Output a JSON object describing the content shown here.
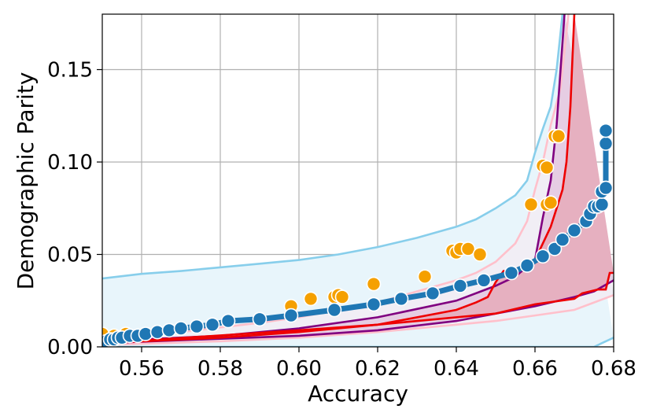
{
  "chart_data": {
    "type": "line",
    "xlabel": "Accuracy",
    "ylabel": "Demographic Parity",
    "xlim": [
      0.55,
      0.68
    ],
    "ylim": [
      0.0,
      0.18
    ],
    "xticks": [
      0.56,
      0.58,
      0.6,
      0.62,
      0.64,
      0.66,
      0.68
    ],
    "xtick_labels": [
      "0.56",
      "0.58",
      "0.60",
      "0.62",
      "0.64",
      "0.66",
      "0.68"
    ],
    "yticks": [
      0.0,
      0.05,
      0.1,
      0.15
    ],
    "ytick_labels": [
      "0.00",
      "0.05",
      "0.10",
      "0.15"
    ],
    "grid": true,
    "legend": "none",
    "colors": {
      "light_blue_line": "#87ceeb",
      "light_blue_fill": "#e8f5fb",
      "pink_line": "#ffc0cb",
      "pink_fill": "#f1eef5",
      "purple_line": "#800080",
      "purple_fill": "#e6cde3",
      "red_line": "#ee0000",
      "red_fill": "#e6b0c0",
      "orange_points": "#f5a000",
      "blue_series": "#1f77b4"
    },
    "bands": [
      {
        "color_key": "light_blue",
        "upper": [
          [
            0.55,
            0.037
          ],
          [
            0.56,
            0.0395
          ],
          [
            0.57,
            0.041
          ],
          [
            0.58,
            0.043
          ],
          [
            0.59,
            0.045
          ],
          [
            0.6,
            0.047
          ],
          [
            0.61,
            0.05
          ],
          [
            0.62,
            0.054
          ],
          [
            0.63,
            0.059
          ],
          [
            0.64,
            0.065
          ],
          [
            0.645,
            0.069
          ],
          [
            0.65,
            0.075
          ],
          [
            0.655,
            0.082
          ],
          [
            0.658,
            0.09
          ],
          [
            0.66,
            0.105
          ],
          [
            0.662,
            0.118
          ],
          [
            0.664,
            0.13
          ],
          [
            0.6655,
            0.15
          ],
          [
            0.667,
            0.18
          ]
        ],
        "lower": [
          [
            0.55,
            0.0
          ],
          [
            0.63,
            0.0
          ],
          [
            0.64,
            0.0
          ],
          [
            0.65,
            0.0
          ],
          [
            0.66,
            0.0
          ],
          [
            0.67,
            0.0
          ],
          [
            0.675,
            0.0
          ],
          [
            0.68,
            0.005
          ]
        ]
      },
      {
        "color_key": "pink",
        "upper": [
          [
            0.55,
            0.006
          ],
          [
            0.57,
            0.008
          ],
          [
            0.59,
            0.013
          ],
          [
            0.6,
            0.016
          ],
          [
            0.61,
            0.02
          ],
          [
            0.62,
            0.024
          ],
          [
            0.63,
            0.03
          ],
          [
            0.64,
            0.036
          ],
          [
            0.645,
            0.04
          ],
          [
            0.65,
            0.046
          ],
          [
            0.655,
            0.056
          ],
          [
            0.658,
            0.068
          ],
          [
            0.66,
            0.085
          ],
          [
            0.662,
            0.1
          ],
          [
            0.664,
            0.12
          ],
          [
            0.6665,
            0.14
          ],
          [
            0.6685,
            0.18
          ]
        ],
        "lower": [
          [
            0.55,
            0.001
          ],
          [
            0.58,
            0.003
          ],
          [
            0.6,
            0.005
          ],
          [
            0.62,
            0.008
          ],
          [
            0.64,
            0.012
          ],
          [
            0.65,
            0.014
          ],
          [
            0.66,
            0.017
          ],
          [
            0.67,
            0.02
          ],
          [
            0.675,
            0.024
          ],
          [
            0.68,
            0.028
          ]
        ]
      },
      {
        "color_key": "purple",
        "upper": [
          [
            0.55,
            0.003
          ],
          [
            0.58,
            0.006
          ],
          [
            0.6,
            0.01
          ],
          [
            0.62,
            0.016
          ],
          [
            0.64,
            0.025
          ],
          [
            0.65,
            0.033
          ],
          [
            0.655,
            0.038
          ],
          [
            0.66,
            0.047
          ],
          [
            0.662,
            0.07
          ],
          [
            0.664,
            0.09
          ],
          [
            0.6655,
            0.12
          ],
          [
            0.6665,
            0.15
          ],
          [
            0.6675,
            0.18
          ]
        ],
        "lower": [
          [
            0.55,
            0.002
          ],
          [
            0.6,
            0.006
          ],
          [
            0.62,
            0.009
          ],
          [
            0.64,
            0.014
          ],
          [
            0.65,
            0.018
          ],
          [
            0.66,
            0.022
          ],
          [
            0.67,
            0.027
          ],
          [
            0.675,
            0.03
          ],
          [
            0.68,
            0.036
          ]
        ]
      },
      {
        "color_key": "red",
        "upper": [
          [
            0.55,
            0.002
          ],
          [
            0.58,
            0.005
          ],
          [
            0.6,
            0.008
          ],
          [
            0.62,
            0.012
          ],
          [
            0.64,
            0.02
          ],
          [
            0.645,
            0.024
          ],
          [
            0.648,
            0.027
          ],
          [
            0.65,
            0.035
          ],
          [
            0.652,
            0.041
          ],
          [
            0.656,
            0.041
          ],
          [
            0.658,
            0.044
          ],
          [
            0.66,
            0.047
          ],
          [
            0.664,
            0.065
          ],
          [
            0.6655,
            0.075
          ],
          [
            0.667,
            0.085
          ],
          [
            0.668,
            0.1
          ],
          [
            0.669,
            0.13
          ],
          [
            0.67,
            0.18
          ]
        ],
        "lower": [
          [
            0.55,
            0.002
          ],
          [
            0.6,
            0.009
          ],
          [
            0.62,
            0.012
          ],
          [
            0.64,
            0.016
          ],
          [
            0.65,
            0.018
          ],
          [
            0.66,
            0.023
          ],
          [
            0.67,
            0.026
          ],
          [
            0.672,
            0.029
          ],
          [
            0.676,
            0.031
          ],
          [
            0.678,
            0.031
          ],
          [
            0.679,
            0.04
          ],
          [
            0.68,
            0.04
          ]
        ]
      }
    ],
    "series": [
      {
        "color_key": "orange_points",
        "style": "scatter",
        "x": [
          0.55,
          0.553,
          0.556,
          0.598,
          0.603,
          0.609,
          0.61,
          0.611,
          0.619,
          0.632,
          0.639,
          0.64,
          0.641,
          0.643,
          0.646,
          0.659,
          0.662,
          0.663,
          0.663,
          0.664,
          0.665,
          0.666
        ],
        "y": [
          0.007,
          0.006,
          0.007,
          0.022,
          0.026,
          0.027,
          0.028,
          0.027,
          0.034,
          0.038,
          0.052,
          0.051,
          0.053,
          0.053,
          0.05,
          0.077,
          0.098,
          0.077,
          0.097,
          0.078,
          0.114,
          0.114
        ]
      },
      {
        "color_key": "blue_series",
        "style": "line+markers",
        "x": [
          0.551,
          0.552,
          0.553,
          0.554,
          0.555,
          0.557,
          0.559,
          0.561,
          0.564,
          0.567,
          0.57,
          0.574,
          0.578,
          0.582,
          0.59,
          0.598,
          0.609,
          0.619,
          0.626,
          0.634,
          0.641,
          0.647,
          0.654,
          0.658,
          0.662,
          0.665,
          0.667,
          0.67,
          0.673,
          0.674,
          0.675,
          0.676,
          0.677,
          0.677,
          0.678,
          0.678,
          0.678
        ],
        "y": [
          0.003,
          0.004,
          0.004,
          0.005,
          0.005,
          0.006,
          0.006,
          0.007,
          0.008,
          0.009,
          0.01,
          0.011,
          0.012,
          0.014,
          0.015,
          0.017,
          0.02,
          0.023,
          0.026,
          0.029,
          0.033,
          0.036,
          0.04,
          0.044,
          0.049,
          0.053,
          0.058,
          0.063,
          0.068,
          0.072,
          0.076,
          0.076,
          0.077,
          0.084,
          0.086,
          0.11,
          0.117
        ]
      }
    ]
  }
}
